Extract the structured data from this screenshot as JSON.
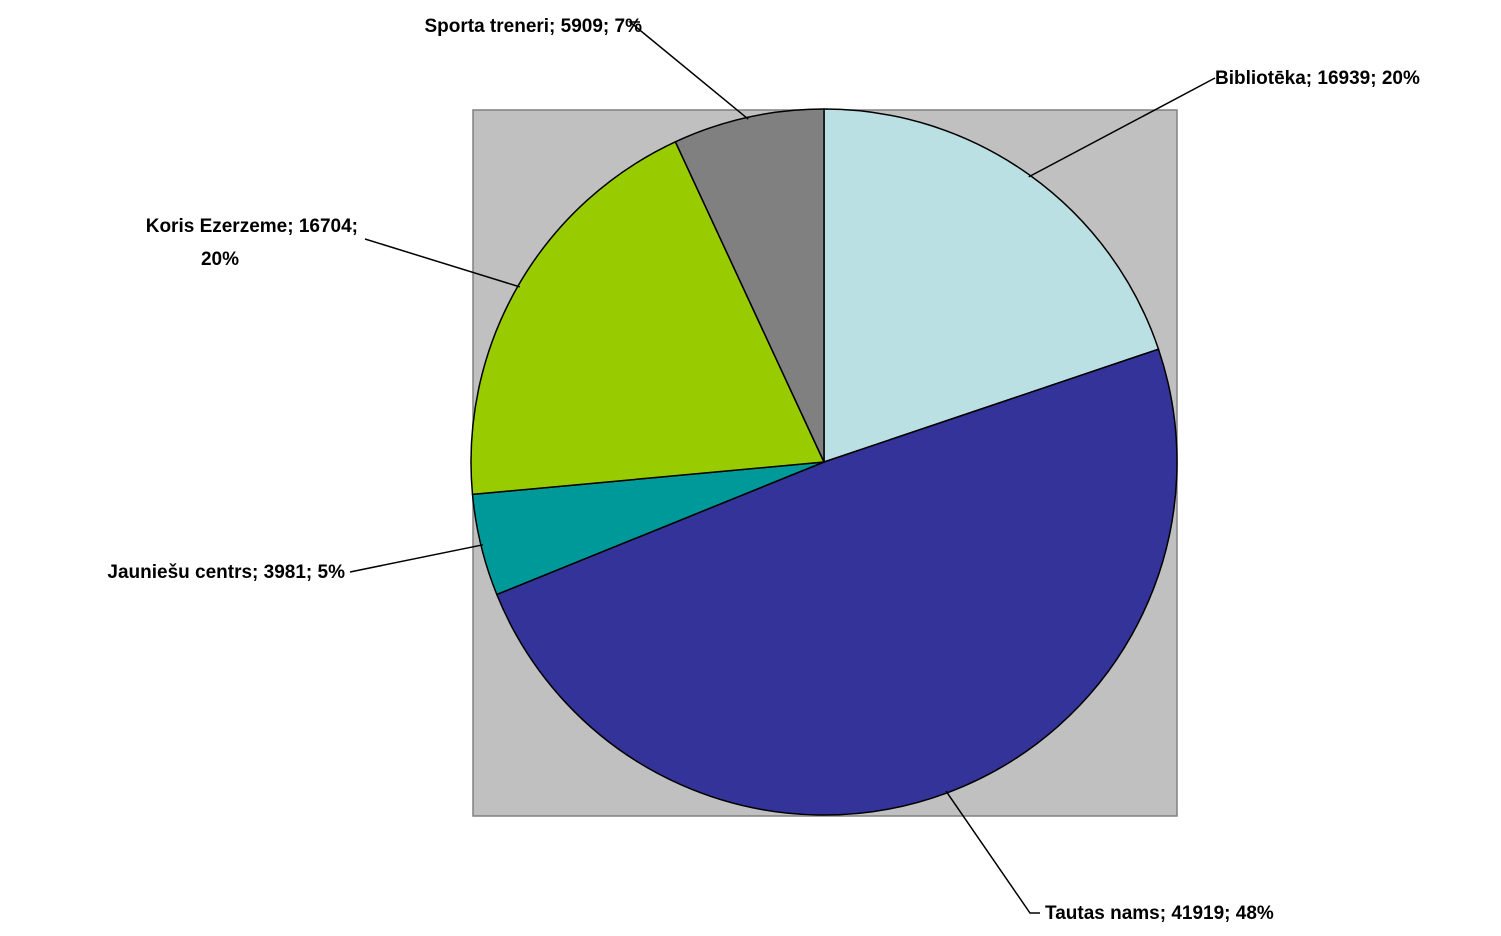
{
  "chart_data": {
    "type": "pie",
    "title": "",
    "start_angle_deg": 0,
    "direction": "clockwise",
    "slices": [
      {
        "name": "Bibliotēka",
        "value": 16939,
        "percent": "20%",
        "color": "#BBE0E3",
        "label_lines": [
          "Bibliotēka; 16939; 20%"
        ]
      },
      {
        "name": "Tautas nams",
        "value": 41919,
        "percent": "48%",
        "color": "#333399",
        "label_lines": [
          "Tautas nams; 41919; 48%"
        ]
      },
      {
        "name": "Jauniešu centrs",
        "value": 3981,
        "percent": "5%",
        "color": "#009999",
        "label_lines": [
          "Jauniešu centrs; 3981; 5%"
        ]
      },
      {
        "name": "Koris Ezerzeme",
        "value": 16704,
        "percent": "20%",
        "color": "#99CC00",
        "label_lines": [
          "Koris Ezerzeme; 16704;",
          "20%"
        ]
      },
      {
        "name": "Sporta treneri",
        "value": 5909,
        "percent": "7%",
        "color": "#808080",
        "label_lines": [
          "Sporta treneri; 5909; 7%"
        ]
      }
    ],
    "plot_area_color": "#C0C0C0"
  }
}
